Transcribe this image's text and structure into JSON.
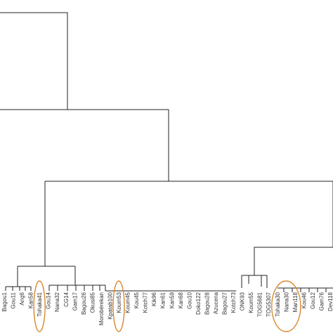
{
  "diagram": {
    "type": "dendrogram",
    "colors": {
      "line": "#222222",
      "label": "#333333",
      "highlight": "#d9882b"
    },
    "leaves": [
      "Bagou1",
      "Gou11",
      "Ang6",
      "Kan58",
      "Tohaka41",
      "Gou14",
      "Nana32",
      "CG14",
      "Gam17",
      "Bagou26",
      "Okusi85",
      "Morobérekan",
      "Kpatab100",
      "Koum53",
      "Koum45",
      "Kou45",
      "Kotch77",
      "Kik96",
      "Kan61",
      "Kan59",
      "Kan68",
      "Gou10",
      "Doko122",
      "Bagou28",
      "Azucena",
      "Bagou27",
      "Kotch73",
      "ONK93",
      "Koum55",
      "TOG5681",
      "TOG5307",
      "Tohaka30",
      "Nana30",
      "Man118",
      "Kou46",
      "Gou12",
      "Gam76",
      "Dev118"
    ],
    "highlighted_leaves": [
      "Tohaka41",
      "Koum53",
      "Nana30",
      "Man118"
    ]
  }
}
